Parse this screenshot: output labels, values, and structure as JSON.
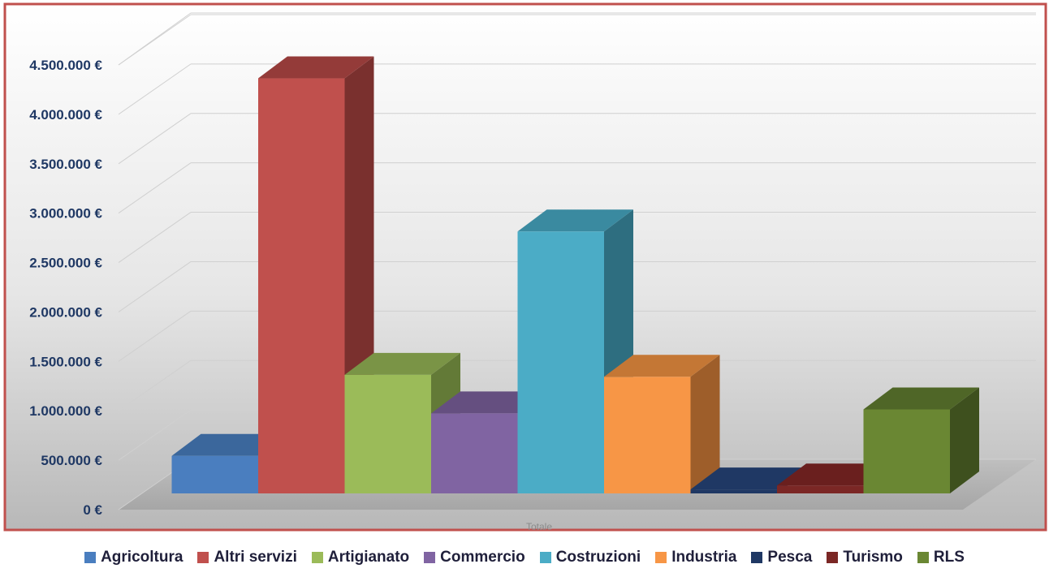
{
  "chart_data": {
    "type": "bar",
    "categories": [
      "Totale"
    ],
    "series": [
      {
        "name": "Agricoltura",
        "values": [
          380000
        ],
        "color": "#4a7ebf",
        "top": "#3b679c",
        "side": "#2f5280"
      },
      {
        "name": "Altri servizi",
        "values": [
          4200000
        ],
        "color": "#c0504d",
        "top": "#943b39",
        "side": "#7a302e"
      },
      {
        "name": "Artigianato",
        "values": [
          1200000
        ],
        "color": "#9bbb59",
        "top": "#7a9446",
        "side": "#637a37"
      },
      {
        "name": "Commercio",
        "values": [
          810000
        ],
        "color": "#8064a2",
        "top": "#654f80",
        "side": "#524069"
      },
      {
        "name": "Costruzioni",
        "values": [
          2650000
        ],
        "color": "#4bacc6",
        "top": "#3a8aa0",
        "side": "#2e6e80"
      },
      {
        "name": "Industria",
        "values": [
          1180000
        ],
        "color": "#f79646",
        "top": "#c47735",
        "side": "#9e5e2a"
      },
      {
        "name": "Pesca",
        "values": [
          40000
        ],
        "color": "#1f3864",
        "top": "#1f3864",
        "side": "#172a4c"
      },
      {
        "name": "Turismo",
        "values": [
          80000
        ],
        "color": "#7b2725",
        "top": "#6a1f1e",
        "side": "#551918"
      },
      {
        "name": "RLS",
        "values": [
          850000
        ],
        "color": "#6a8733",
        "top": "#4f6627",
        "side": "#3e501e"
      }
    ],
    "y_ticks": [
      "0 €",
      "500.000 €",
      "1.000.000 €",
      "1.500.000 €",
      "2.000.000 €",
      "2.500.000 €",
      "3.000.000 €",
      "3.500.000 €",
      "4.000.000 €",
      "4.500.000 €"
    ],
    "ylim": [
      0,
      4500000
    ],
    "title": "",
    "xlabel": "",
    "ylabel": "",
    "grid": true,
    "legend_position": "bottom",
    "border_color": "#c0504d"
  }
}
